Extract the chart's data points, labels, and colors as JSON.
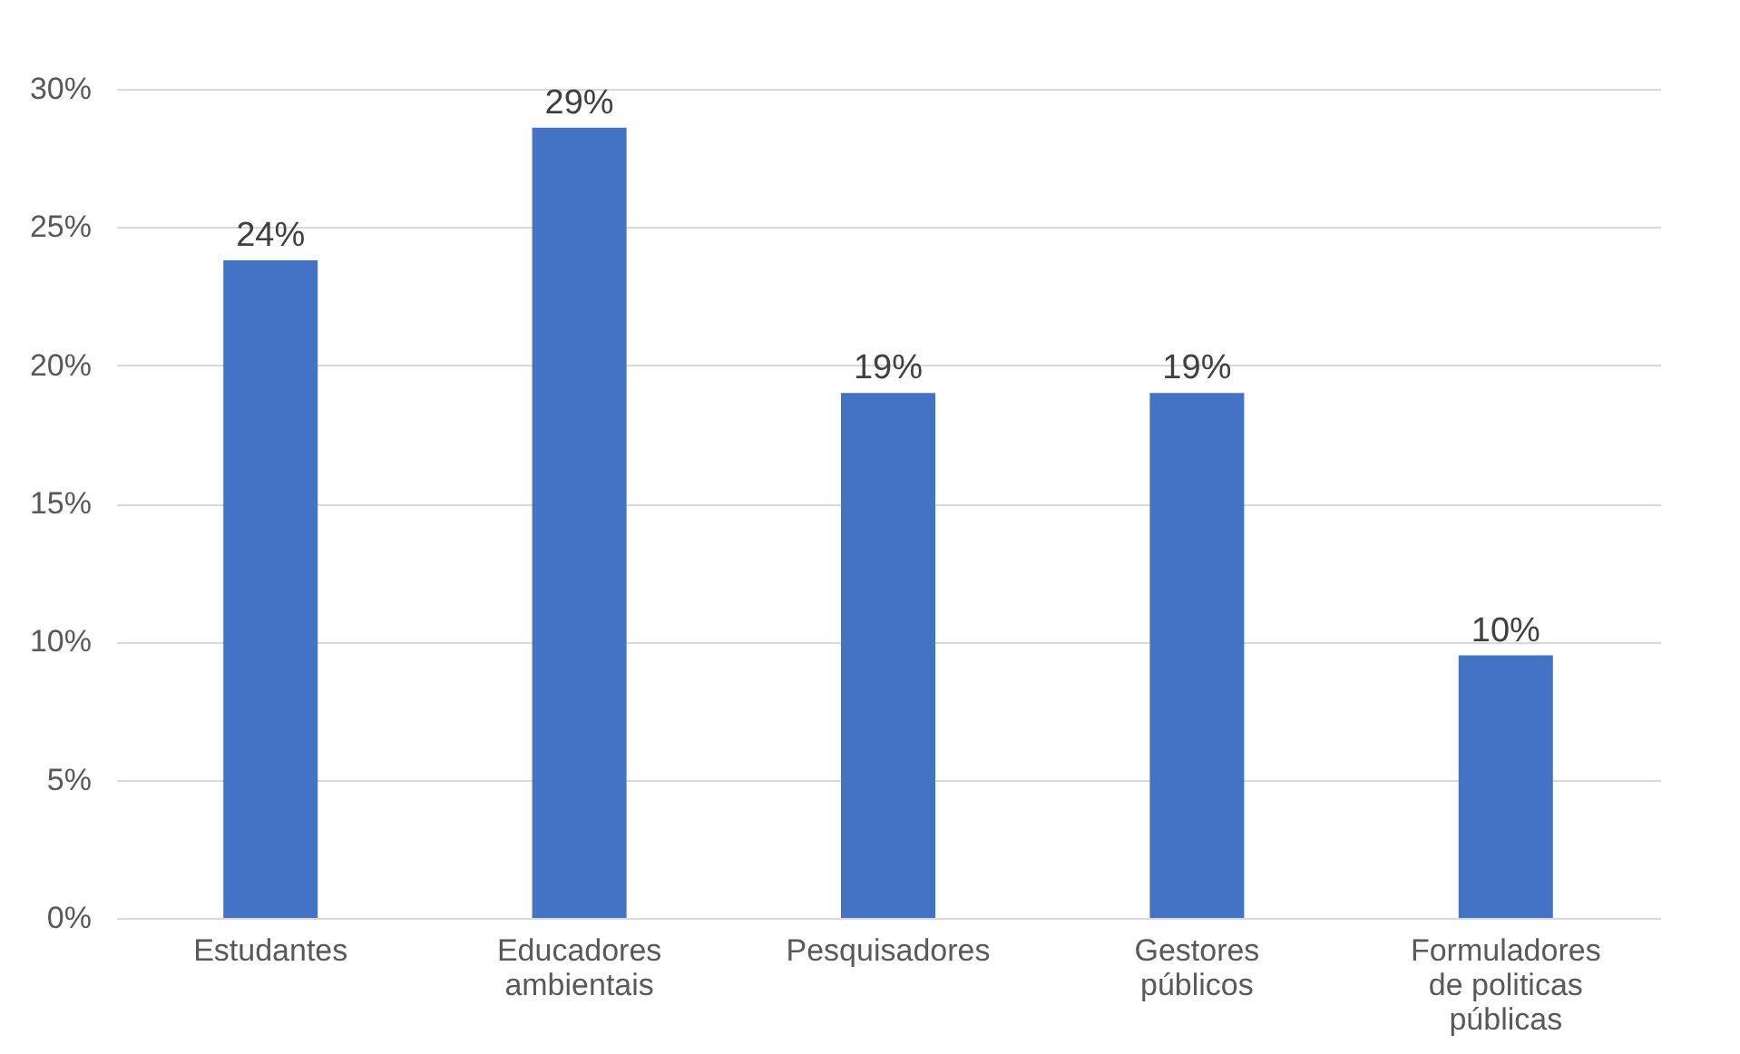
{
  "chart_data": {
    "type": "bar",
    "categories": [
      "Estudantes",
      "Educadores ambientais",
      "Pesquisadores",
      "Gestores públicos",
      "Formuladores de politicas públicas"
    ],
    "values": [
      23.8,
      28.6,
      19,
      19,
      9.5
    ],
    "value_labels": [
      "24%",
      "29%",
      "19%",
      "19%",
      "10%"
    ],
    "color": "#4472c4",
    "ylim": [
      0,
      30
    ],
    "yticks": [
      {
        "value": 0,
        "label": "0%"
      },
      {
        "value": 5,
        "label": "5%"
      },
      {
        "value": 10,
        "label": "10%"
      },
      {
        "value": 15,
        "label": "15%"
      },
      {
        "value": 20,
        "label": "20%"
      },
      {
        "value": 25,
        "label": "25%"
      },
      {
        "value": 30,
        "label": "30%"
      }
    ],
    "grid": "y"
  }
}
